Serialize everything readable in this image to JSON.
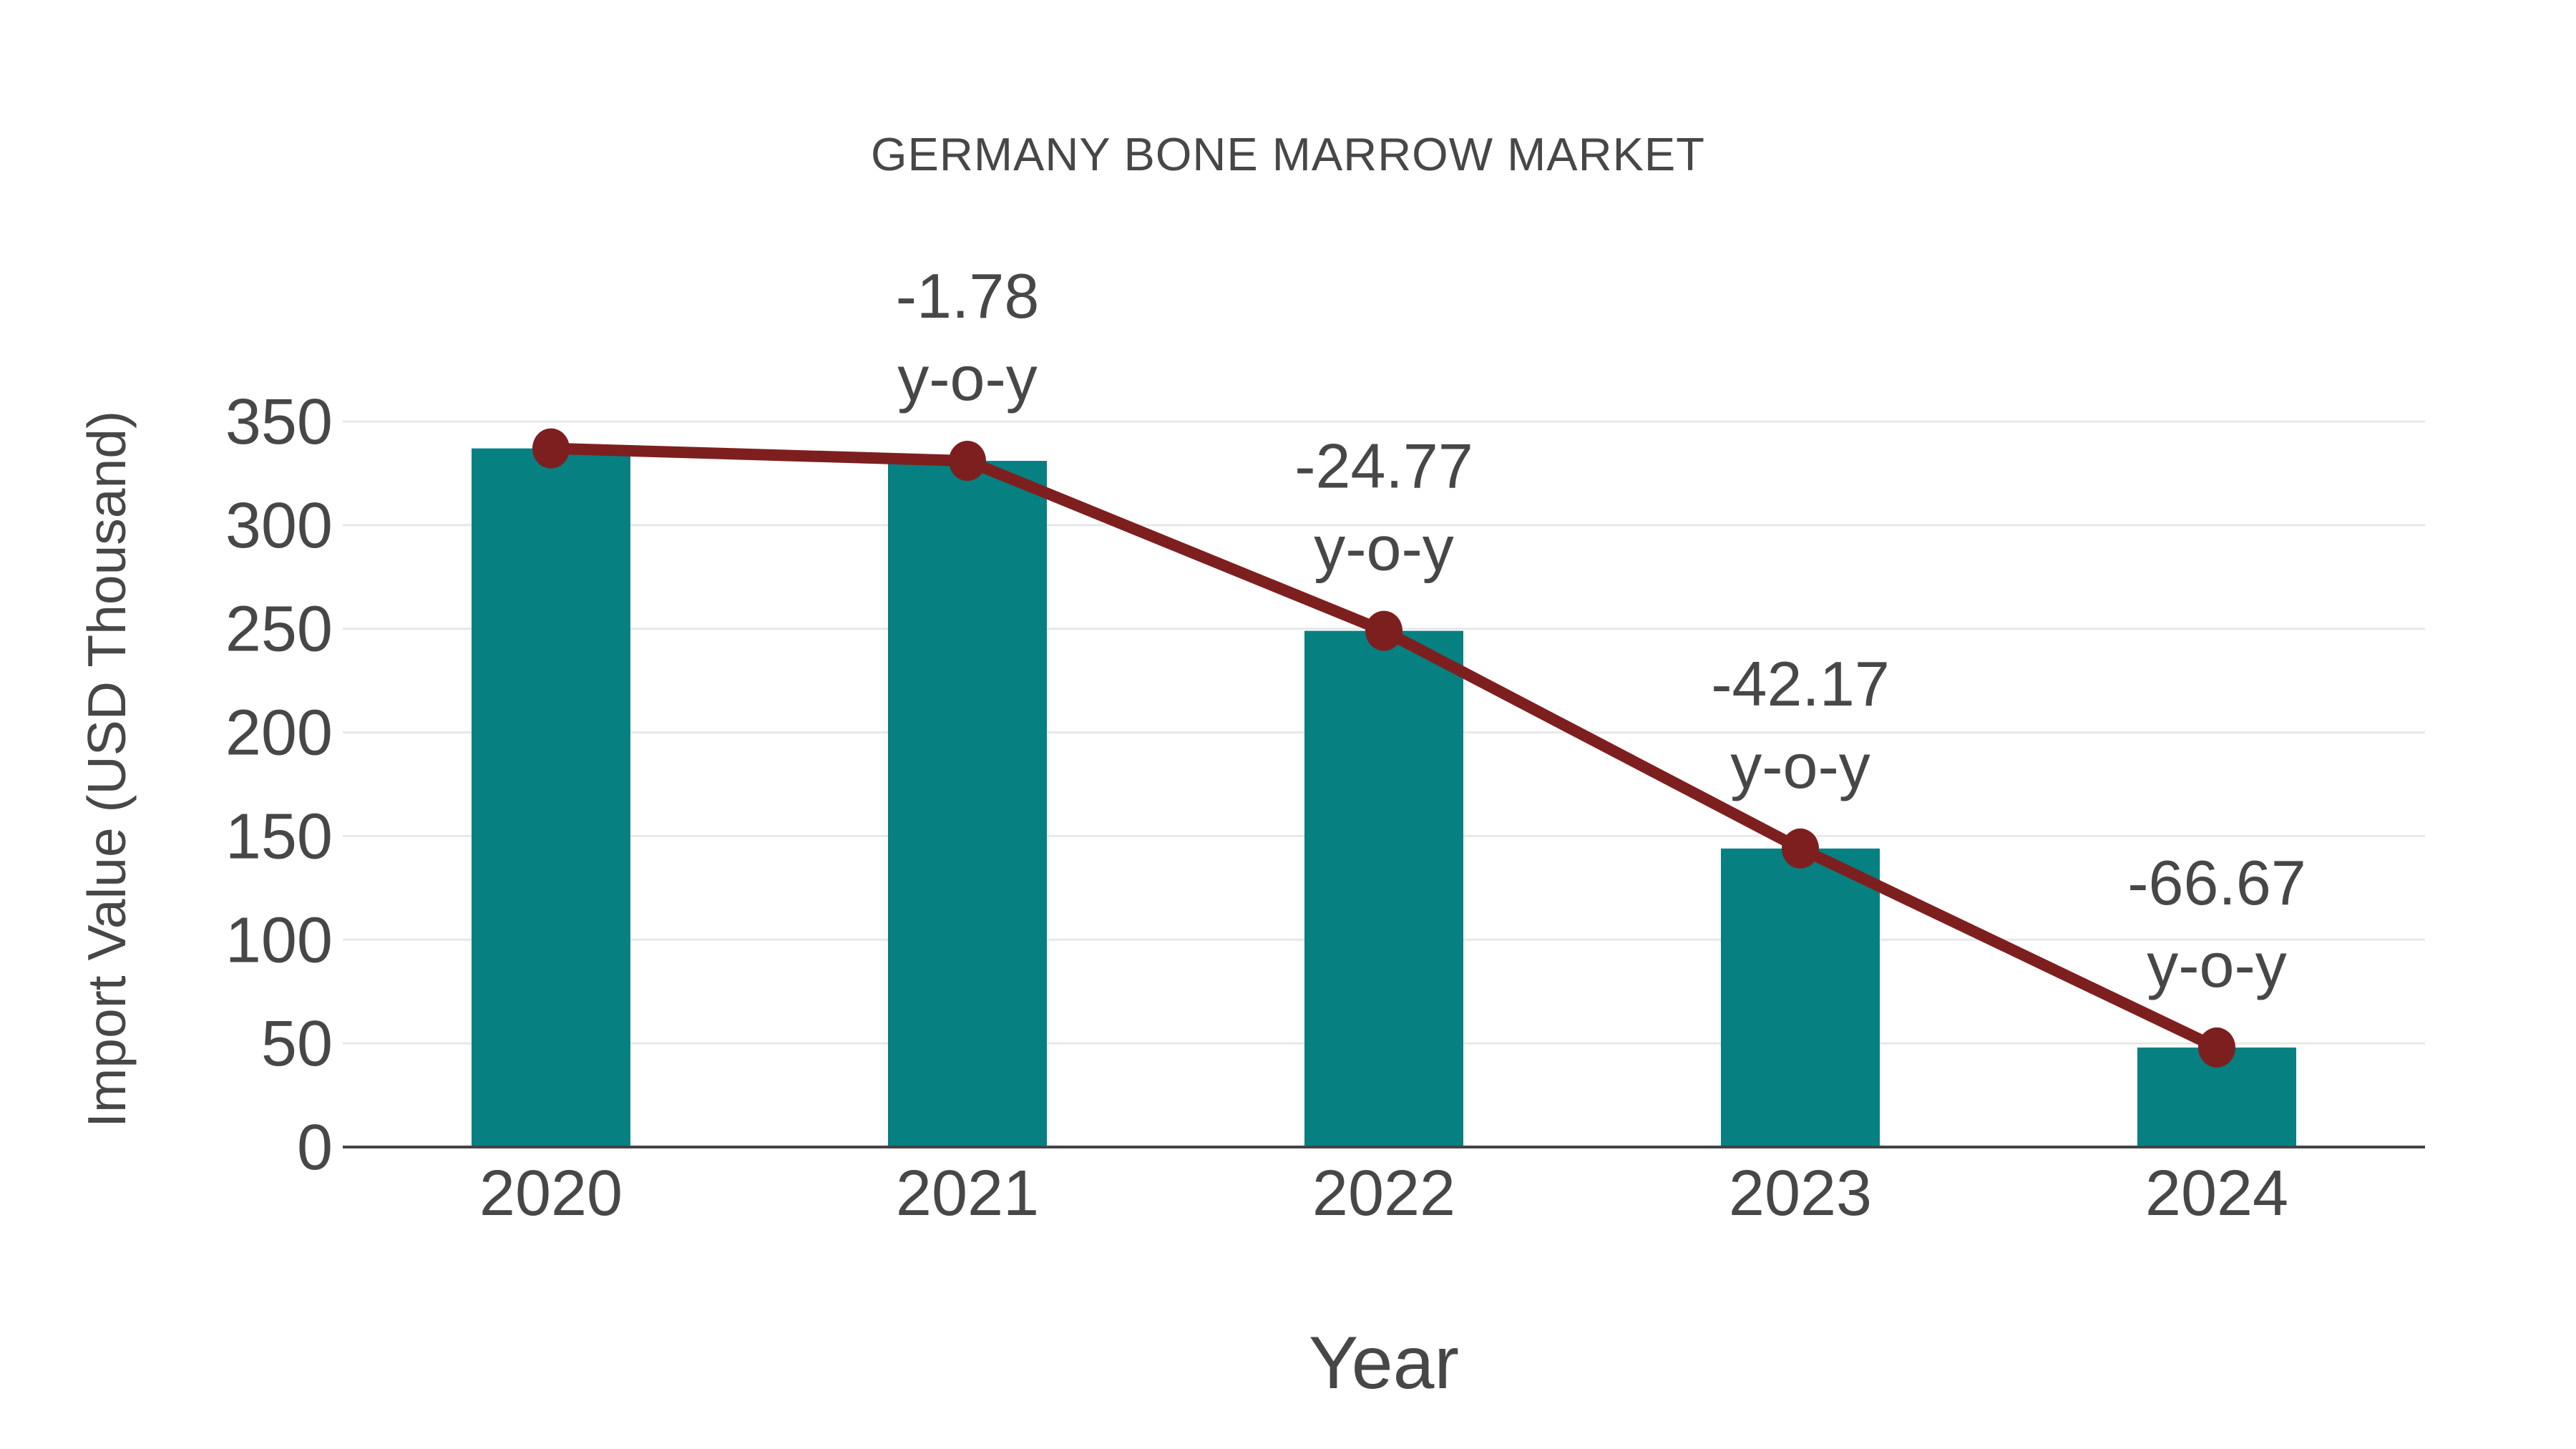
{
  "chart_data": {
    "type": "bar",
    "title": "GERMANY BONE MARROW MARKET",
    "xlabel": "Year",
    "ylabel": "Import Value (USD Thousand)",
    "categories": [
      "2020",
      "2021",
      "2022",
      "2023",
      "2024"
    ],
    "series": [
      {
        "name": "Import Value bars",
        "type": "bar",
        "values": [
          337,
          331,
          249,
          144,
          48
        ],
        "color": "#068080"
      },
      {
        "name": "Import Value trend line",
        "type": "line",
        "values": [
          337,
          331,
          249,
          144,
          48
        ],
        "color": "#7e1f1f"
      }
    ],
    "annotations": [
      {
        "category": "2021",
        "line1": "-1.78",
        "line2": "y-o-y"
      },
      {
        "category": "2022",
        "line1": "-24.77",
        "line2": "y-o-y"
      },
      {
        "category": "2023",
        "line1": "-42.17",
        "line2": "y-o-y"
      },
      {
        "category": "2024",
        "line1": "-66.67",
        "line2": "y-o-y"
      }
    ],
    "yticks": [
      0,
      50,
      100,
      150,
      200,
      250,
      300,
      350
    ],
    "ylim": [
      0,
      350
    ],
    "grid": "horizontal",
    "legend_position": "none",
    "colors": {
      "bar": "#068080",
      "line": "#7e1f1f",
      "grid": "#e8e8e8",
      "axis": "#444444",
      "text": "#474747"
    }
  }
}
